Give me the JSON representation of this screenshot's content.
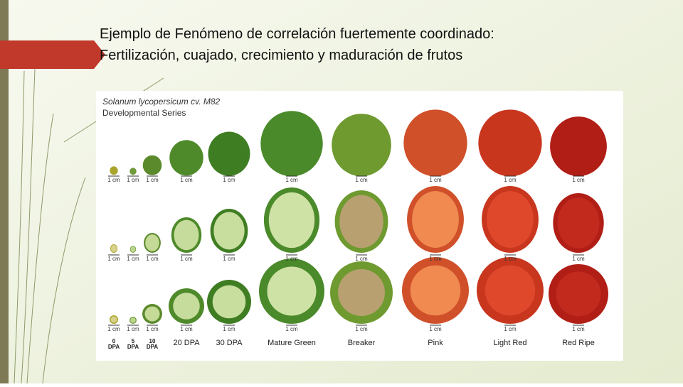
{
  "header": {
    "title_lines": [
      "Ejemplo de Fenómeno de correlación fuertemente coordinado:",
      "Fertilización, cuajado, crecimiento y maduración de frutos"
    ]
  },
  "figure": {
    "caption_lines": [
      "Solanum lycopersicum cv. M82",
      "Developmental Series"
    ],
    "scale_label": "1 cm",
    "stages": [
      [
        "0",
        "DPA"
      ],
      [
        "5",
        "DPA"
      ],
      [
        "10",
        "DPA"
      ],
      [
        "20 DPA"
      ],
      [
        "30 DPA"
      ],
      [
        "Mature Green"
      ],
      [
        "Breaker"
      ],
      [
        "Pink"
      ],
      [
        "Light Red"
      ],
      [
        "Red Ripe"
      ]
    ]
  }
}
